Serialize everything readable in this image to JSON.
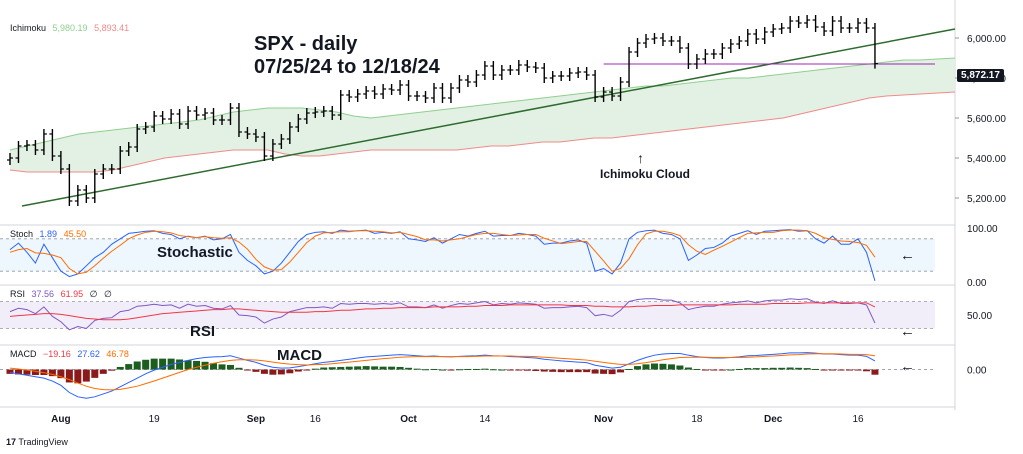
{
  "title": {
    "line1": "SPX - daily",
    "line2": "07/25/24 to 12/18/24"
  },
  "annotations": {
    "cloud": "Ichimoku Cloud",
    "stochastic": "Stochastic",
    "rsi": "RSI",
    "macd": "MACD"
  },
  "watermark": "TradingView",
  "colors": {
    "price": "#000000",
    "trendline": "#2e6b2e",
    "support_line": "#9c27b0",
    "cloud_fill": "#dff0e0",
    "cloud_upper": "#8fcf8f",
    "cloud_lower": "#f08a8a",
    "stoch_k": "#2962ff",
    "stoch_d": "#ff6d00",
    "rsi_line": "#7e57c2",
    "rsi_ma": "#f23645",
    "macd_line": "#2962ff",
    "signal_line": "#ff6d00",
    "hist_pos": "#1b5e20",
    "hist_neg": "#8b1a1a"
  },
  "indicators": {
    "ichimoku": {
      "label": "Ichimoku",
      "v1": "5,980.19",
      "v2": "5,893.41"
    },
    "stoch": {
      "label": "Stoch",
      "v1": "1.89",
      "v2": "45.50"
    },
    "rsi": {
      "label": "RSI",
      "v1": "37.56",
      "v2": "61.95",
      "v3": "∅",
      "v4": "∅"
    },
    "macd": {
      "label": "MACD",
      "v1": "−19.16",
      "v2": "27.62",
      "v3": "46.78"
    }
  },
  "last_price_label": "5,872.17",
  "chart_data": {
    "type": "ohlc",
    "x_labels": [
      "Aug",
      "19",
      "Sep",
      "16",
      "Oct",
      "14",
      "Nov",
      "18",
      "Dec",
      "16"
    ],
    "price_axis": {
      "ticks": [
        "6,000.00",
        "5,800.00",
        "5,600.00",
        "5,400.00",
        "5,200.00"
      ],
      "tick_values": [
        6000,
        5800,
        5600,
        5400,
        5200
      ],
      "range": [
        5080,
        6100
      ]
    },
    "dates": [
      "07/25",
      "07/26",
      "07/29",
      "07/30",
      "07/31",
      "08/01",
      "08/02",
      "08/05",
      "08/06",
      "08/07",
      "08/08",
      "08/09",
      "08/12",
      "08/13",
      "08/14",
      "08/15",
      "08/16",
      "08/19",
      "08/20",
      "08/21",
      "08/22",
      "08/23",
      "08/26",
      "08/27",
      "08/28",
      "08/29",
      "08/30",
      "09/03",
      "09/04",
      "09/05",
      "09/06",
      "09/09",
      "09/10",
      "09/11",
      "09/12",
      "09/13",
      "09/16",
      "09/17",
      "09/18",
      "09/19",
      "09/20",
      "09/23",
      "09/24",
      "09/25",
      "09/26",
      "09/27",
      "09/30",
      "10/01",
      "10/02",
      "10/03",
      "10/04",
      "10/07",
      "10/08",
      "10/09",
      "10/10",
      "10/11",
      "10/14",
      "10/15",
      "10/16",
      "10/17",
      "10/18",
      "10/21",
      "10/22",
      "10/23",
      "10/24",
      "10/25",
      "10/28",
      "10/29",
      "10/30",
      "10/31",
      "11/01",
      "11/04",
      "11/05",
      "11/06",
      "11/07",
      "11/08",
      "11/11",
      "11/12",
      "11/13",
      "11/14",
      "11/15",
      "11/18",
      "11/19",
      "11/20",
      "11/21",
      "11/22",
      "11/25",
      "11/26",
      "11/27",
      "11/29",
      "12/02",
      "12/03",
      "12/04",
      "12/05",
      "12/06",
      "12/09",
      "12/10",
      "12/11",
      "12/12",
      "12/13",
      "12/16",
      "12/17",
      "12/18"
    ],
    "close": [
      5400,
      5460,
      5465,
      5440,
      5520,
      5410,
      5345,
      5185,
      5240,
      5200,
      5320,
      5345,
      5345,
      5435,
      5455,
      5545,
      5555,
      5610,
      5595,
      5620,
      5570,
      5635,
      5615,
      5625,
      5590,
      5590,
      5650,
      5530,
      5520,
      5505,
      5410,
      5470,
      5495,
      5555,
      5595,
      5625,
      5630,
      5635,
      5615,
      5715,
      5705,
      5720,
      5735,
      5720,
      5745,
      5740,
      5765,
      5710,
      5710,
      5700,
      5750,
      5700,
      5750,
      5790,
      5780,
      5815,
      5860,
      5815,
      5840,
      5840,
      5865,
      5855,
      5850,
      5800,
      5810,
      5810,
      5825,
      5830,
      5815,
      5705,
      5730,
      5710,
      5780,
      5930,
      5975,
      5995,
      6000,
      5985,
      5985,
      5950,
      5870,
      5895,
      5920,
      5920,
      5950,
      5970,
      5985,
      6020,
      5995,
      6030,
      6045,
      6050,
      6085,
      6075,
      6090,
      6055,
      6035,
      6085,
      6050,
      6050,
      6075,
      6050,
      5872
    ],
    "ohlc_note": "each bar: high/low span around close with open tick left, close tick right",
    "trendline": {
      "from": [
        "07/25",
        5160
      ],
      "to": [
        "12/31",
        6045
      ]
    },
    "support_line": {
      "from": [
        "11/01",
        5870
      ],
      "to": [
        "12/18",
        5870
      ]
    },
    "cloud_upper": [
      5440,
      5460,
      5480,
      5500,
      5520,
      5530,
      5540,
      5550,
      5560,
      5570,
      5580,
      5590,
      5610,
      5630,
      5640,
      5650,
      5650,
      5650,
      5640,
      5630,
      5610,
      5600,
      5610,
      5620,
      5630,
      5640,
      5650,
      5660,
      5670,
      5680,
      5690,
      5700,
      5710,
      5720,
      5730,
      5740,
      5750,
      5760,
      5760,
      5770,
      5780,
      5790,
      5800,
      5800,
      5810,
      5820,
      5830,
      5840,
      5850,
      5860,
      5870,
      5880,
      5890,
      5890,
      5895,
      5900
    ],
    "cloud_lower": [
      5340,
      5330,
      5330,
      5330,
      5330,
      5330,
      5340,
      5360,
      5380,
      5400,
      5410,
      5420,
      5430,
      5440,
      5440,
      5440,
      5420,
      5410,
      5410,
      5420,
      5430,
      5440,
      5440,
      5440,
      5440,
      5440,
      5440,
      5450,
      5460,
      5460,
      5470,
      5480,
      5480,
      5490,
      5500,
      5500,
      5510,
      5520,
      5530,
      5540,
      5550,
      5560,
      5570,
      5580,
      5590,
      5600,
      5620,
      5640,
      5660,
      5680,
      5700,
      5710,
      5715,
      5720,
      5725,
      5730
    ],
    "stochastic": {
      "axis_ticks": [
        "100.00",
        "0.00"
      ],
      "range": [
        0,
        100
      ],
      "bands": [
        80,
        20
      ],
      "k": [
        60,
        72,
        55,
        35,
        70,
        45,
        20,
        10,
        15,
        30,
        45,
        55,
        70,
        80,
        90,
        92,
        94,
        95,
        90,
        88,
        80,
        85,
        82,
        85,
        78,
        80,
        88,
        55,
        40,
        30,
        15,
        20,
        35,
        55,
        75,
        88,
        92,
        93,
        90,
        96,
        94,
        95,
        96,
        90,
        92,
        90,
        93,
        80,
        78,
        75,
        82,
        72,
        80,
        88,
        85,
        90,
        94,
        85,
        86,
        86,
        90,
        88,
        85,
        70,
        72,
        72,
        76,
        78,
        72,
        20,
        25,
        15,
        35,
        80,
        92,
        95,
        96,
        90,
        88,
        80,
        40,
        50,
        62,
        64,
        72,
        85,
        90,
        95,
        88,
        94,
        95,
        96,
        97,
        94,
        95,
        80,
        72,
        85,
        70,
        70,
        80,
        55,
        2
      ],
      "d": [
        55,
        60,
        62,
        54,
        53,
        50,
        45,
        25,
        15,
        18,
        30,
        44,
        57,
        68,
        80,
        87,
        92,
        94,
        93,
        91,
        86,
        84,
        82,
        84,
        82,
        81,
        82,
        74,
        61,
        42,
        28,
        22,
        23,
        37,
        55,
        73,
        85,
        91,
        92,
        93,
        93,
        95,
        95,
        94,
        93,
        91,
        92,
        88,
        84,
        78,
        78,
        76,
        78,
        80,
        84,
        88,
        90,
        90,
        88,
        86,
        87,
        88,
        88,
        81,
        76,
        71,
        73,
        75,
        75,
        57,
        39,
        20,
        25,
        43,
        69,
        89,
        94,
        94,
        91,
        86,
        69,
        57,
        51,
        59,
        66,
        74,
        82,
        90,
        91,
        92,
        92,
        95,
        96,
        96,
        95,
        90,
        82,
        79,
        76,
        75,
        73,
        68,
        46
      ]
    },
    "rsi": {
      "axis_ticks": [
        "50.00"
      ],
      "range": [
        10,
        90
      ],
      "bands": [
        70,
        30
      ],
      "rsi": [
        55,
        60,
        58,
        52,
        62,
        48,
        40,
        28,
        33,
        30,
        42,
        45,
        46,
        55,
        57,
        63,
        64,
        66,
        64,
        65,
        60,
        66,
        63,
        64,
        60,
        59,
        64,
        50,
        49,
        47,
        38,
        44,
        47,
        55,
        58,
        61,
        61,
        62,
        60,
        67,
        66,
        67,
        67,
        66,
        67,
        66,
        68,
        62,
        62,
        61,
        65,
        60,
        64,
        67,
        66,
        68,
        70,
        65,
        67,
        66,
        68,
        67,
        66,
        60,
        61,
        61,
        62,
        63,
        61,
        49,
        51,
        48,
        57,
        70,
        73,
        74,
        74,
        72,
        72,
        68,
        58,
        61,
        63,
        63,
        66,
        68,
        69,
        71,
        68,
        71,
        72,
        72,
        74,
        73,
        74,
        69,
        67,
        71,
        67,
        67,
        68,
        65,
        38
      ],
      "ma": [
        48,
        49,
        50,
        51,
        52,
        52,
        51,
        49,
        47,
        45,
        44,
        43,
        43,
        43,
        44,
        46,
        48,
        50,
        52,
        53,
        54,
        55,
        56,
        57,
        58,
        58,
        59,
        59,
        58,
        57,
        56,
        55,
        54,
        54,
        54,
        54,
        55,
        55,
        56,
        57,
        57,
        58,
        59,
        59,
        60,
        60,
        61,
        61,
        61,
        61,
        62,
        62,
        62,
        62,
        63,
        63,
        64,
        64,
        64,
        65,
        65,
        65,
        65,
        65,
        65,
        65,
        64,
        64,
        64,
        63,
        63,
        62,
        62,
        62,
        63,
        63,
        64,
        64,
        64,
        65,
        65,
        65,
        65,
        65,
        65,
        65,
        66,
        66,
        66,
        66,
        67,
        67,
        67,
        67,
        68,
        68,
        68,
        68,
        68,
        68,
        68,
        68,
        62
      ]
    },
    "macd": {
      "axis_ticks": [
        "0.00"
      ],
      "range": [
        -120,
        75
      ],
      "macd": [
        -10,
        -15,
        -20,
        -25,
        -30,
        -40,
        -55,
        -80,
        -95,
        -100,
        -95,
        -85,
        -75,
        -60,
        -45,
        -30,
        -15,
        -2,
        8,
        18,
        25,
        32,
        38,
        42,
        44,
        45,
        48,
        40,
        32,
        25,
        15,
        8,
        5,
        6,
        10,
        15,
        20,
        25,
        28,
        32,
        36,
        40,
        44,
        46,
        48,
        50,
        52,
        50,
        48,
        46,
        47,
        45,
        44,
        46,
        47,
        48,
        50,
        48,
        47,
        45,
        44,
        42,
        40,
        36,
        33,
        30,
        28,
        26,
        24,
        15,
        10,
        5,
        8,
        20,
        32,
        42,
        50,
        54,
        56,
        56,
        50,
        45,
        42,
        40,
        40,
        42,
        44,
        48,
        49,
        51,
        53,
        55,
        58,
        58,
        59,
        57,
        54,
        54,
        52,
        50,
        50,
        46,
        30
      ],
      "signal": [
        5,
        2,
        -2,
        -6,
        -11,
        -17,
        -25,
        -35,
        -47,
        -58,
        -66,
        -70,
        -71,
        -69,
        -64,
        -58,
        -49,
        -40,
        -30,
        -20,
        -10,
        0,
        8,
        15,
        22,
        27,
        32,
        34,
        34,
        33,
        30,
        26,
        22,
        19,
        17,
        16,
        17,
        18,
        20,
        23,
        26,
        29,
        32,
        35,
        38,
        40,
        43,
        44,
        45,
        45,
        45,
        45,
        45,
        45,
        45,
        46,
        47,
        47,
        47,
        47,
        46,
        46,
        45,
        43,
        41,
        39,
        37,
        35,
        33,
        29,
        25,
        21,
        18,
        18,
        20,
        24,
        29,
        34,
        38,
        42,
        43,
        43,
        43,
        42,
        42,
        42,
        42,
        43,
        44,
        46,
        47,
        49,
        51,
        52,
        54,
        55,
        55,
        55,
        54,
        53,
        53,
        52,
        48
      ],
      "hist_note": "histogram = macd - signal"
    }
  }
}
